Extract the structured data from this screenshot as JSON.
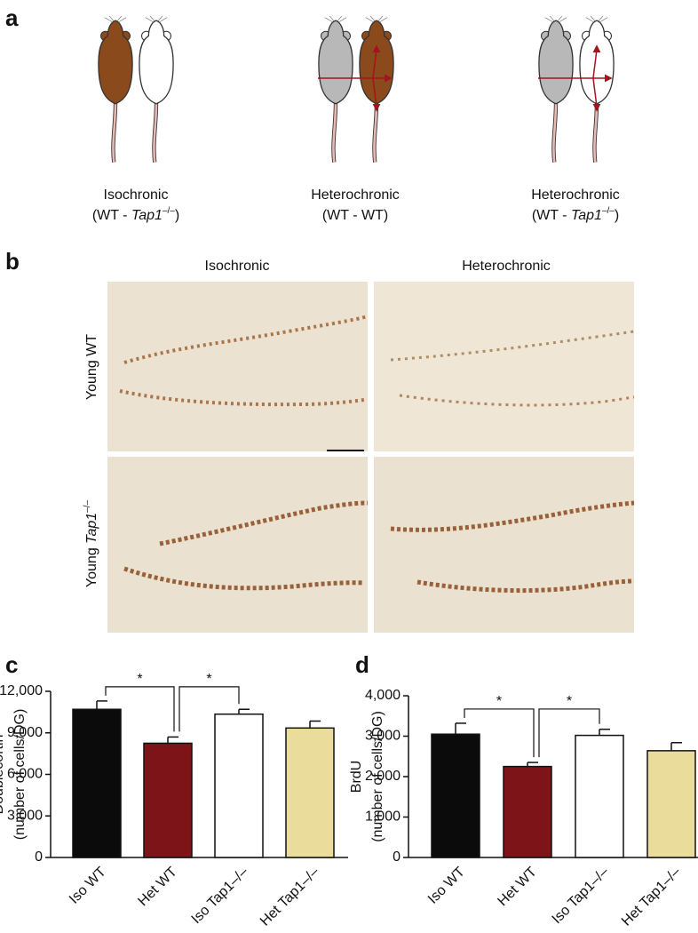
{
  "panels": {
    "a": "a",
    "b": "b",
    "c": "c",
    "d": "d"
  },
  "panel_a": {
    "captions": [
      {
        "line1": "Isochronic",
        "line2": [
          "(WT - ",
          "Tap1",
          "–/–",
          ")"
        ]
      },
      {
        "line1": "Heterochronic",
        "line2": [
          "(WT - WT)"
        ]
      },
      {
        "line1": "Heterochronic",
        "line2": [
          "(WT - ",
          "Tap1",
          "–/–",
          ")"
        ]
      }
    ]
  },
  "panel_b": {
    "columns": [
      "Isochronic",
      "Heterochronic"
    ],
    "rows": [
      [
        "Young WT"
      ],
      [
        "Young ",
        "Tap1",
        "–/–"
      ]
    ]
  },
  "chart_data": [
    {
      "type": "bar",
      "ylabel": [
        "Doublecortin",
        "(number of cells/DG)"
      ],
      "categories": [
        "Iso WT",
        "Het WT",
        "Iso Tap1–/–",
        "Het Tap1–/–"
      ],
      "values": [
        10700,
        8250,
        10350,
        9350
      ],
      "errors": [
        600,
        450,
        350,
        500
      ],
      "colors": [
        "#0b0b0b",
        "#7d1518",
        "#ffffff",
        "#eadd9b"
      ],
      "ylim": [
        0,
        12000
      ],
      "yticks": [
        0,
        {
          "value": 3000,
          "label": "3,000"
        },
        {
          "value": 6000,
          "label": "6,000"
        },
        {
          "value": 9000,
          "label": "9,000"
        },
        {
          "value": 12000,
          "label": "12,000"
        }
      ],
      "significance": [
        {
          "from": 0,
          "to": 1,
          "label": "*"
        },
        {
          "from": 1,
          "to": 2,
          "label": "*"
        }
      ]
    },
    {
      "type": "bar",
      "ylabel": [
        "BrdU",
        "(number of cells/DG)"
      ],
      "categories": [
        "Iso WT",
        "Het WT",
        "Iso Tap1–/–",
        "Het Tap1–/–"
      ],
      "values": [
        3050,
        2250,
        3020,
        2640
      ],
      "errors": [
        270,
        100,
        150,
        200
      ],
      "colors": [
        "#0b0b0b",
        "#7d1518",
        "#ffffff",
        "#eadd9b"
      ],
      "ylim": [
        0,
        4000
      ],
      "yticks": [
        0,
        {
          "value": 1000,
          "label": "1,000"
        },
        {
          "value": 2000,
          "label": "2,000"
        },
        {
          "value": 3000,
          "label": "3,000"
        },
        {
          "value": 4000,
          "label": "4,000"
        }
      ],
      "significance": [
        {
          "from": 0,
          "to": 1,
          "label": "*"
        },
        {
          "from": 1,
          "to": 2,
          "label": "*"
        }
      ]
    }
  ]
}
